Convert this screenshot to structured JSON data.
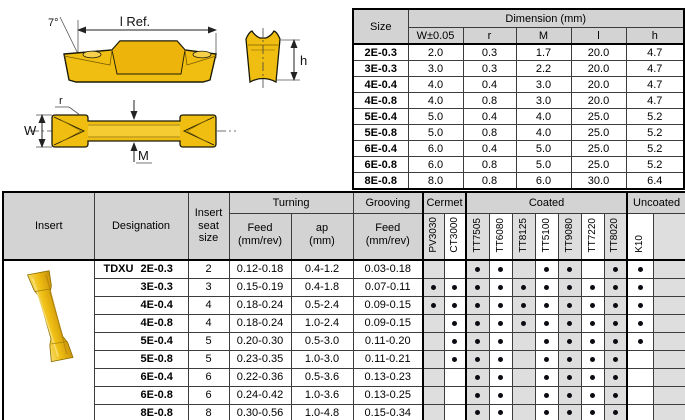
{
  "drawings": {
    "labels": {
      "angle": "7°",
      "l_ref": "l Ref.",
      "h": "h",
      "r": "r",
      "w": "W",
      "m": "M"
    },
    "colors": {
      "gold": "#F0BE10",
      "gold_dark": "#C9930B",
      "gold_light": "#F7D04B",
      "outline": "#1a1a08"
    }
  },
  "dimension_table": {
    "size_header": "Size",
    "group_header": "Dimension (mm)",
    "columns": [
      "W±0.05",
      "r",
      "M",
      "l",
      "h"
    ],
    "rows": [
      {
        "size": "2E-0.3",
        "values": [
          "2.0",
          "0.3",
          "1.7",
          "20.0",
          "4.7"
        ]
      },
      {
        "size": "3E-0.3",
        "values": [
          "3.0",
          "0.3",
          "2.2",
          "20.0",
          "4.7"
        ]
      },
      {
        "size": "4E-0.4",
        "values": [
          "4.0",
          "0.4",
          "3.0",
          "20.0",
          "4.7"
        ]
      },
      {
        "size": "4E-0.8",
        "values": [
          "4.0",
          "0.8",
          "3.0",
          "20.0",
          "4.7"
        ]
      },
      {
        "size": "5E-0.4",
        "values": [
          "5.0",
          "0.4",
          "4.0",
          "25.0",
          "5.2"
        ]
      },
      {
        "size": "5E-0.8",
        "values": [
          "5.0",
          "0.8",
          "4.0",
          "25.0",
          "5.2"
        ]
      },
      {
        "size": "6E-0.4",
        "values": [
          "6.0",
          "0.4",
          "5.0",
          "25.0",
          "5.2"
        ]
      },
      {
        "size": "6E-0.8",
        "values": [
          "6.0",
          "0.8",
          "5.0",
          "25.0",
          "5.2"
        ]
      },
      {
        "size": "8E-0.8",
        "values": [
          "8.0",
          "0.8",
          "6.0",
          "30.0",
          "6.4"
        ]
      }
    ]
  },
  "main_table": {
    "headers": {
      "insert": "Insert",
      "designation": "Designation",
      "seat": "Insert\nseat\nsize",
      "turning": "Turning",
      "grooving": "Grooving",
      "feed": "Feed\n(mm/rev)",
      "ap": "ap\n(mm)",
      "groove_feed": "Feed\n(mm/rev)",
      "cermet": "Cermet",
      "coated": "Coated",
      "uncoated": "Uncoated"
    },
    "grades": [
      "PV3030",
      "CT3000",
      "TT7505",
      "TT6080",
      "TT8125",
      "TT5100",
      "TT9080",
      "TT7220",
      "TT8020",
      "K10"
    ],
    "designation_prefix": "TDXU",
    "rows": [
      {
        "size": "2E-0.3",
        "seat": "2",
        "feed": "0.12-0.18",
        "ap": "0.4-1.2",
        "groove": "0.03-0.18",
        "dots": [
          0,
          0,
          1,
          1,
          0,
          1,
          1,
          0,
          1,
          1
        ]
      },
      {
        "size": "3E-0.3",
        "seat": "3",
        "feed": "0.15-0.19",
        "ap": "0.4-1.8",
        "groove": "0.07-0.11",
        "dots": [
          1,
          1,
          1,
          1,
          1,
          1,
          1,
          1,
          1,
          1
        ]
      },
      {
        "size": "4E-0.4",
        "seat": "4",
        "feed": "0.18-0.24",
        "ap": "0.5-2.4",
        "groove": "0.09-0.15",
        "dots": [
          1,
          1,
          1,
          1,
          1,
          1,
          1,
          1,
          1,
          1
        ]
      },
      {
        "size": "4E-0.8",
        "seat": "4",
        "feed": "0.18-0.24",
        "ap": "1.0-2.4",
        "groove": "0.09-0.15",
        "dots": [
          0,
          1,
          1,
          1,
          1,
          1,
          1,
          1,
          1,
          1
        ]
      },
      {
        "size": "5E-0.4",
        "seat": "5",
        "feed": "0.20-0.30",
        "ap": "0.5-3.0",
        "groove": "0.11-0.20",
        "dots": [
          0,
          1,
          1,
          1,
          0,
          1,
          1,
          1,
          1,
          1
        ]
      },
      {
        "size": "5E-0.8",
        "seat": "5",
        "feed": "0.23-0.35",
        "ap": "1.0-3.0",
        "groove": "0.11-0.21",
        "dots": [
          0,
          1,
          1,
          1,
          0,
          1,
          1,
          1,
          1,
          0
        ]
      },
      {
        "size": "6E-0.4",
        "seat": "6",
        "feed": "0.22-0.36",
        "ap": "0.5-3.6",
        "groove": "0.13-0.23",
        "dots": [
          0,
          0,
          1,
          1,
          0,
          1,
          1,
          1,
          1,
          0
        ]
      },
      {
        "size": "6E-0.8",
        "seat": "6",
        "feed": "0.24-0.42",
        "ap": "1.0-3.6",
        "groove": "0.13-0.25",
        "dots": [
          0,
          0,
          1,
          1,
          0,
          1,
          1,
          1,
          1,
          0
        ]
      },
      {
        "size": "8E-0.8",
        "seat": "8",
        "feed": "0.30-0.56",
        "ap": "1.0-4.8",
        "groove": "0.15-0.34",
        "dots": [
          0,
          0,
          1,
          1,
          0,
          1,
          1,
          1,
          1,
          0
        ]
      }
    ]
  },
  "colors": {
    "header_gray": "#d3d3d3",
    "stripe_gray": "#dedede",
    "dot": "#0b0b12",
    "border": "#3c3c3c"
  }
}
